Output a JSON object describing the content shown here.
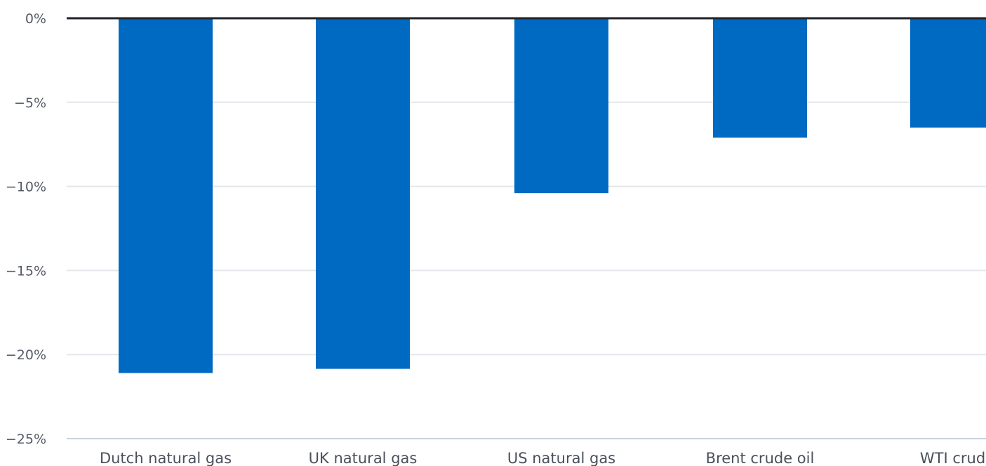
{
  "chart_data": {
    "type": "bar",
    "title": "",
    "xlabel": "",
    "ylabel": "",
    "categories": [
      "Dutch natural gas",
      "UK natural gas",
      "US natural gas",
      "Brent crude oil",
      "WTI crude"
    ],
    "values": [
      -21.1,
      -20.85,
      -10.4,
      -7.1,
      -6.5
    ],
    "ylim": [
      -25,
      0
    ],
    "yticks": [
      0,
      -5,
      -10,
      -15,
      -20,
      -25
    ],
    "ytick_labels": [
      "0%",
      "−5%",
      "−10%",
      "−15%",
      "−20%",
      "−25%"
    ],
    "grid": true,
    "legend": "none",
    "colors": {
      "bar": "#006AC3",
      "grid": "#e3e6ea",
      "zero_line": "#1f2328",
      "bottom_axis": "#c9d3e0"
    }
  }
}
